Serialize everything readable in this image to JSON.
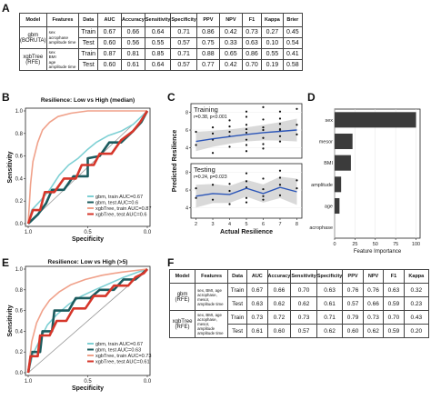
{
  "panels": {
    "A": "A",
    "B": "B",
    "C": "C",
    "D": "D",
    "E": "E",
    "F": "F"
  },
  "table_a": {
    "headers": [
      "Model",
      "Features",
      "Data",
      "AUC",
      "Accuracy",
      "Sensitivity",
      "Specificity",
      "PPV",
      "NPV",
      "F1",
      "Kappa",
      "Brier"
    ],
    "groups": [
      {
        "model": "gbm (BORUTA)",
        "features": [
          "sex",
          "acrophase",
          "amplitude time"
        ],
        "rows": [
          {
            "data": "Train",
            "values": [
              "0.67",
              "0.66",
              "0.64",
              "0.71",
              "0.86",
              "0.42",
              "0.73",
              "0.27",
              "0.45"
            ]
          },
          {
            "data": "Test",
            "values": [
              "0.60",
              "0.56",
              "0.55",
              "0.57",
              "0.75",
              "0.33",
              "0.63",
              "0.10",
              "0.54"
            ]
          }
        ]
      },
      {
        "model": "xgbTree (RFE)",
        "features": [
          "sex",
          "BMI",
          "age",
          "amplitude time"
        ],
        "rows": [
          {
            "data": "Train",
            "values": [
              "0.87",
              "0.81",
              "0.85",
              "0.71",
              "0.88",
              "0.65",
              "0.86",
              "0.55",
              "0.41"
            ]
          },
          {
            "data": "Test",
            "values": [
              "0.60",
              "0.61",
              "0.64",
              "0.57",
              "0.77",
              "0.42",
              "0.70",
              "0.19",
              "0.58"
            ]
          }
        ]
      }
    ]
  },
  "chart_data": [
    {
      "type": "line",
      "panel": "B",
      "title": "Resilience: Low vs High (median)",
      "xlabel": "Specificity",
      "ylabel": "Sensitivity",
      "xticks": [
        "1.0",
        "0.5",
        "0.0"
      ],
      "yticks": [
        "0.0",
        "0.2",
        "0.4",
        "0.6",
        "0.8",
        "1.0"
      ],
      "xlim": [
        1.0,
        0.0
      ],
      "ylim": [
        0,
        1
      ],
      "legend": [
        "gbm, train AUC=0.67",
        "gbm, test AUC=0.6",
        "xgbTree, train AUC=0.87",
        "xgbTree, test AUC=0.6"
      ],
      "legend_position": "bottom-right",
      "series": [
        {
          "name": "gbm, train AUC=0.67",
          "color": "#7ed0d4",
          "points": [
            [
              1,
              0
            ],
            [
              0.97,
              0.12
            ],
            [
              0.9,
              0.2
            ],
            [
              0.82,
              0.3
            ],
            [
              0.74,
              0.43
            ],
            [
              0.66,
              0.52
            ],
            [
              0.58,
              0.58
            ],
            [
              0.5,
              0.66
            ],
            [
              0.43,
              0.72
            ],
            [
              0.33,
              0.78
            ],
            [
              0.22,
              0.82
            ],
            [
              0.12,
              0.88
            ],
            [
              0.04,
              0.96
            ],
            [
              0,
              1
            ]
          ]
        },
        {
          "name": "gbm, test AUC=0.6",
          "color": "#1b5b5e",
          "points": [
            [
              1,
              0
            ],
            [
              0.92,
              0.08
            ],
            [
              0.85,
              0.18
            ],
            [
              0.8,
              0.3
            ],
            [
              0.7,
              0.3
            ],
            [
              0.62,
              0.42
            ],
            [
              0.5,
              0.42
            ],
            [
              0.5,
              0.58
            ],
            [
              0.4,
              0.6
            ],
            [
              0.32,
              0.72
            ],
            [
              0.22,
              0.72
            ],
            [
              0.12,
              0.82
            ],
            [
              0.05,
              0.9
            ],
            [
              0,
              1
            ]
          ]
        },
        {
          "name": "xgbTree, train AUC=0.87",
          "color": "#f0a18a",
          "points": [
            [
              1,
              0
            ],
            [
              0.98,
              0.35
            ],
            [
              0.96,
              0.55
            ],
            [
              0.92,
              0.72
            ],
            [
              0.88,
              0.83
            ],
            [
              0.82,
              0.9
            ],
            [
              0.75,
              0.95
            ],
            [
              0.64,
              0.98
            ],
            [
              0.5,
              1
            ],
            [
              0,
              1
            ]
          ]
        },
        {
          "name": "xgbTree, test AUC=0.6",
          "color": "#d6362a",
          "points": [
            [
              1,
              0
            ],
            [
              0.96,
              0.12
            ],
            [
              0.9,
              0.12
            ],
            [
              0.86,
              0.28
            ],
            [
              0.78,
              0.28
            ],
            [
              0.7,
              0.4
            ],
            [
              0.6,
              0.4
            ],
            [
              0.55,
              0.52
            ],
            [
              0.45,
              0.52
            ],
            [
              0.4,
              0.62
            ],
            [
              0.3,
              0.62
            ],
            [
              0.22,
              0.74
            ],
            [
              0.12,
              0.82
            ],
            [
              0.06,
              0.9
            ],
            [
              0,
              1
            ]
          ]
        }
      ]
    },
    {
      "type": "scatter",
      "panel": "C",
      "xlabel": "Actual Resilience",
      "ylabel": "Predicted Resilience",
      "xticks": [
        "2",
        "3",
        "4",
        "5",
        "6",
        "7",
        "8"
      ],
      "xlim": [
        1.7,
        8.3
      ],
      "subplots": [
        {
          "label": "Training",
          "stat": "r=0.38, p<0.001",
          "yticks": [
            "4",
            "6",
            "8"
          ],
          "ylim": [
            2.8,
            9
          ],
          "trend": [
            [
              2,
              4.7
            ],
            [
              3,
              5
            ],
            [
              4,
              5.25
            ],
            [
              5,
              5.5
            ],
            [
              6,
              5.7
            ],
            [
              7,
              5.85
            ],
            [
              8,
              6.0
            ]
          ],
          "band": [
            1.1,
            0.4,
            1.3
          ],
          "points": [
            [
              2,
              4.3
            ],
            [
              2,
              5.8
            ],
            [
              3,
              3.4
            ],
            [
              3,
              5.6
            ],
            [
              3,
              6.3
            ],
            [
              3,
              4.9
            ],
            [
              4,
              5.8
            ],
            [
              4,
              4.1
            ],
            [
              4,
              6.4
            ],
            [
              4,
              5.3
            ],
            [
              4,
              7.1
            ],
            [
              5,
              3.6
            ],
            [
              5,
              4.9
            ],
            [
              5,
              5.7
            ],
            [
              5,
              6.1
            ],
            [
              5,
              6.6
            ],
            [
              5,
              7.5
            ],
            [
              5,
              8.1
            ],
            [
              5,
              4.3
            ],
            [
              6,
              6.3
            ],
            [
              6,
              5.1
            ],
            [
              6,
              4.4
            ],
            [
              6,
              7.2
            ],
            [
              6,
              6.0
            ],
            [
              6,
              8.6
            ],
            [
              6,
              3.9
            ],
            [
              7,
              6.1
            ],
            [
              7,
              7.3
            ],
            [
              7,
              5.3
            ],
            [
              7,
              4.7
            ],
            [
              7,
              6.7
            ],
            [
              7,
              8.1
            ],
            [
              7,
              5.9
            ],
            [
              8,
              8.4
            ],
            [
              8,
              6.6
            ],
            [
              8,
              5.5
            ]
          ]
        },
        {
          "label": "Testing",
          "stat": "r=0.24, p=0.023",
          "yticks": [
            "4",
            "6",
            "8"
          ],
          "ylim": [
            2.8,
            9
          ],
          "trend": [
            [
              2,
              5.3
            ],
            [
              3,
              5.6
            ],
            [
              4,
              5.5
            ],
            [
              5,
              6.2
            ],
            [
              6,
              5.6
            ],
            [
              7,
              6.3
            ],
            [
              8,
              5.8
            ]
          ],
          "band": [
            1.3,
            0.5,
            1.5
          ],
          "points": [
            [
              2,
              5.1
            ],
            [
              2,
              6.2
            ],
            [
              3,
              4.9
            ],
            [
              3,
              6.6
            ],
            [
              4,
              4.4
            ],
            [
              4,
              5.9
            ],
            [
              4,
              6.7
            ],
            [
              5,
              5.1
            ],
            [
              5,
              6.3
            ],
            [
              5,
              7.0
            ],
            [
              5,
              7.9
            ],
            [
              5,
              4.6
            ],
            [
              6,
              6.1
            ],
            [
              6,
              5.3
            ],
            [
              6,
              7.3
            ],
            [
              6,
              4.9
            ],
            [
              7,
              6.6
            ],
            [
              7,
              5.4
            ],
            [
              7,
              7.4
            ],
            [
              7,
              8.2
            ],
            [
              8,
              6.2
            ],
            [
              8,
              7.1
            ]
          ]
        }
      ]
    },
    {
      "type": "bar",
      "panel": "D",
      "orientation": "horizontal",
      "categories": [
        "sex",
        "mesor",
        "BMI",
        "amplitude",
        "age",
        "acrophase"
      ],
      "values": [
        100,
        22,
        20,
        8,
        6,
        0
      ],
      "xlabel": "Feature Importance",
      "xticks": [
        "0",
        "25",
        "50",
        "75",
        "100"
      ],
      "xlim": [
        0,
        105
      ],
      "color": "#3b3b3b"
    },
    {
      "type": "line",
      "panel": "E",
      "title": "Resilience: Low vs High (>5)",
      "xlabel": "Specificity",
      "ylabel": "Sensitivity",
      "xticks": [
        "1.0",
        "0.5",
        "0.0"
      ],
      "yticks": [
        "0.0",
        "0.2",
        "0.4",
        "0.6",
        "0.8",
        "1.0"
      ],
      "xlim": [
        1.0,
        0.0
      ],
      "ylim": [
        0,
        1
      ],
      "legend": [
        "gbm, train AUC=0.67",
        "gbm, test AUC=0.63",
        "xgbTree, train AUC=0.73",
        "xgbTree, test AUC=0.61"
      ],
      "legend_position": "bottom-right",
      "series": [
        {
          "name": "gbm, train AUC=0.67",
          "color": "#7ed0d4",
          "points": [
            [
              1,
              0
            ],
            [
              0.96,
              0.18
            ],
            [
              0.9,
              0.32
            ],
            [
              0.84,
              0.46
            ],
            [
              0.76,
              0.56
            ],
            [
              0.66,
              0.66
            ],
            [
              0.55,
              0.74
            ],
            [
              0.44,
              0.8
            ],
            [
              0.32,
              0.86
            ],
            [
              0.2,
              0.92
            ],
            [
              0.08,
              0.97
            ],
            [
              0,
              1
            ]
          ]
        },
        {
          "name": "gbm, test AUC=0.63",
          "color": "#1b5b5e",
          "points": [
            [
              1,
              0
            ],
            [
              0.97,
              0.2
            ],
            [
              0.9,
              0.2
            ],
            [
              0.88,
              0.4
            ],
            [
              0.8,
              0.4
            ],
            [
              0.78,
              0.6
            ],
            [
              0.66,
              0.6
            ],
            [
              0.6,
              0.72
            ],
            [
              0.48,
              0.72
            ],
            [
              0.4,
              0.8
            ],
            [
              0.28,
              0.8
            ],
            [
              0.2,
              0.9
            ],
            [
              0.1,
              0.9
            ],
            [
              0.04,
              0.96
            ],
            [
              0,
              1
            ]
          ]
        },
        {
          "name": "xgbTree, train AUC=0.73",
          "color": "#f0a18a",
          "points": [
            [
              1,
              0
            ],
            [
              0.97,
              0.3
            ],
            [
              0.93,
              0.48
            ],
            [
              0.88,
              0.6
            ],
            [
              0.82,
              0.7
            ],
            [
              0.74,
              0.78
            ],
            [
              0.64,
              0.85
            ],
            [
              0.52,
              0.9
            ],
            [
              0.38,
              0.94
            ],
            [
              0.22,
              0.97
            ],
            [
              0,
              1
            ]
          ]
        },
        {
          "name": "xgbTree, test AUC=0.61",
          "color": "#d6362a",
          "points": [
            [
              1,
              0
            ],
            [
              0.98,
              0.16
            ],
            [
              0.92,
              0.16
            ],
            [
              0.9,
              0.36
            ],
            [
              0.82,
              0.36
            ],
            [
              0.76,
              0.5
            ],
            [
              0.68,
              0.5
            ],
            [
              0.62,
              0.62
            ],
            [
              0.52,
              0.62
            ],
            [
              0.45,
              0.74
            ],
            [
              0.35,
              0.74
            ],
            [
              0.28,
              0.84
            ],
            [
              0.16,
              0.84
            ],
            [
              0.1,
              0.92
            ],
            [
              0.03,
              0.96
            ],
            [
              0,
              1
            ]
          ]
        }
      ]
    }
  ],
  "table_f": {
    "headers": [
      "Model",
      "Features",
      "Data",
      "AUC",
      "Accuracy",
      "Sensitivity",
      "Specificity",
      "PPV",
      "NPV",
      "F1",
      "Kappa"
    ],
    "groups": [
      {
        "model": "gbm (RFE)",
        "features": [
          "sex, BMI, age",
          "acrophase,",
          "mesor,",
          "amplitude time"
        ],
        "rows": [
          {
            "data": "Train",
            "values": [
              "0.67",
              "0.66",
              "0.70",
              "0.63",
              "0.76",
              "0.76",
              "0.63",
              "0.32"
            ]
          },
          {
            "data": "Test",
            "values": [
              "0.63",
              "0.62",
              "0.62",
              "0.61",
              "0.57",
              "0.66",
              "0.59",
              "0.23"
            ]
          }
        ]
      },
      {
        "model": "xgbTree (RFE)",
        "features": [
          "sex, BMI, age",
          "acrophase,",
          "mesor, amplitude",
          "amplitude time"
        ],
        "rows": [
          {
            "data": "Train",
            "values": [
              "0.73",
              "0.72",
              "0.73",
              "0.71",
              "0.79",
              "0.73",
              "0.70",
              "0.43"
            ]
          },
          {
            "data": "Test",
            "values": [
              "0.61",
              "0.60",
              "0.57",
              "0.62",
              "0.60",
              "0.62",
              "0.59",
              "0.20"
            ]
          }
        ]
      }
    ]
  }
}
